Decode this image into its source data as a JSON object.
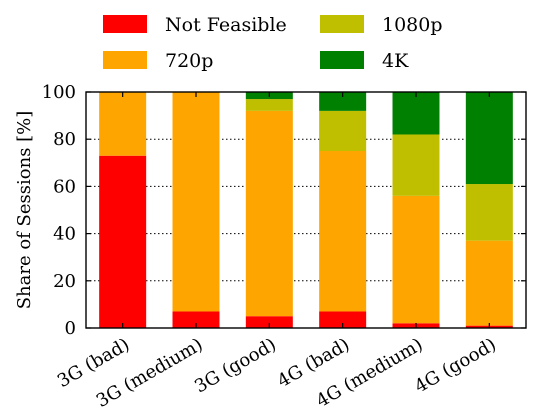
{
  "chart_data": {
    "type": "bar",
    "stacked": true,
    "categories": [
      "3G (bad)",
      "3G (medium)",
      "3G (good)",
      "4G (bad)",
      "4G (medium)",
      "4G (good)"
    ],
    "series": [
      {
        "name": "Not Feasible",
        "color": "#ff0000",
        "values": [
          73,
          7,
          5,
          7,
          2,
          1
        ]
      },
      {
        "name": "720p",
        "color": "#ffa500",
        "values": [
          27,
          93,
          87,
          68,
          54,
          36
        ]
      },
      {
        "name": "1080p",
        "color": "#bfbf00",
        "values": [
          0,
          0,
          5,
          17,
          26,
          24
        ]
      },
      {
        "name": "4K",
        "color": "#008000",
        "values": [
          0,
          0,
          3,
          8,
          18,
          39
        ]
      }
    ],
    "xlabel": "",
    "ylabel": "Share of Sessions [%]",
    "ylim": [
      0,
      100
    ],
    "yticks": [
      0,
      20,
      40,
      60,
      80,
      100
    ],
    "grid": "horizontal dotted",
    "legend_position": "top"
  }
}
